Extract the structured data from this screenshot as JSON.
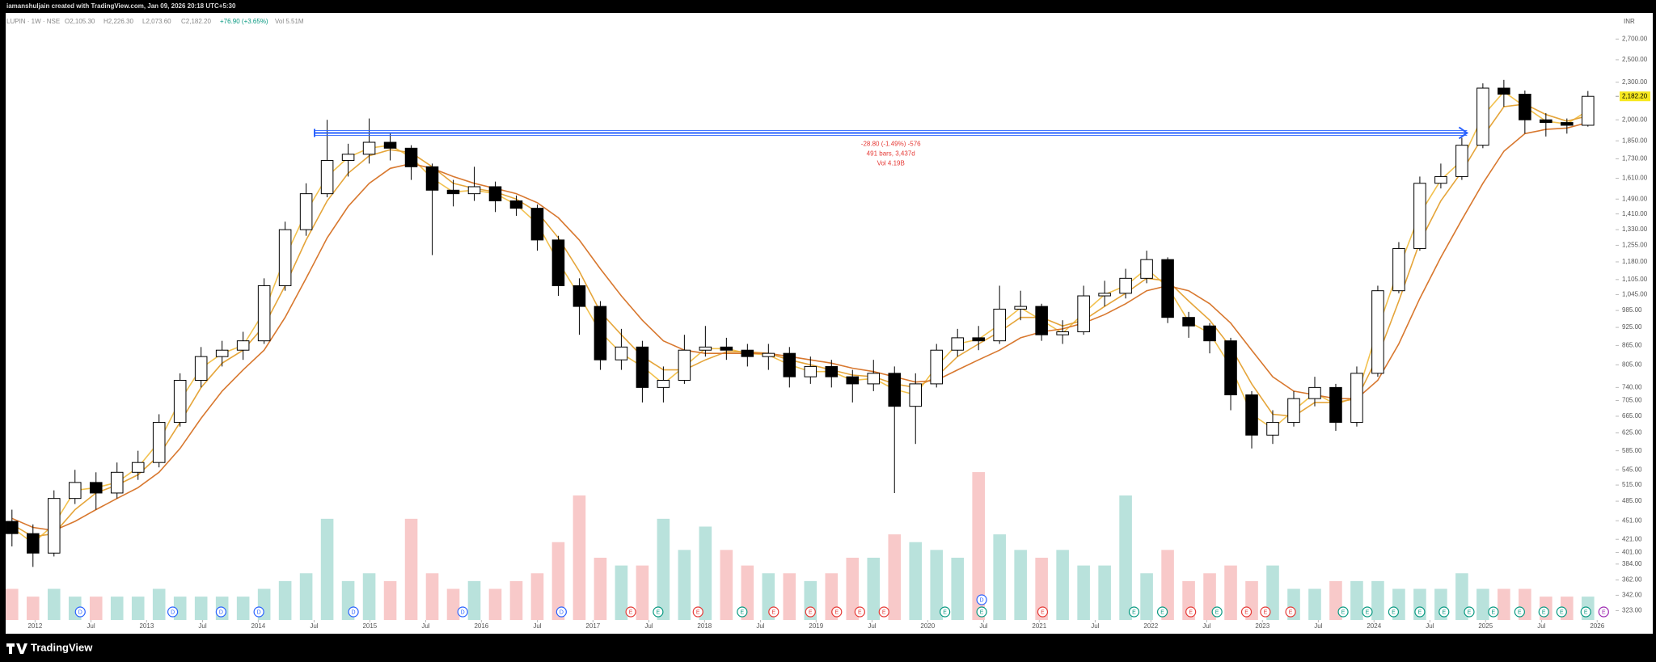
{
  "header": {
    "byline": "iamanshuljain created with TradingView.com, Jan 09, 2026 20:18 UTC+5:30",
    "brand": "TradingView"
  },
  "chart_data": {
    "type": "candlestick",
    "symbol": "LUPIN · 1W · NSE",
    "ohlc": [
      {
        "value": 2105.3,
        "label": "O2,105.30"
      },
      {
        "value": 2226.3,
        "label": "H2,226.30"
      },
      {
        "value": 2073.6,
        "label": "L2,073.60"
      },
      {
        "value": 2182.2,
        "label": "C2,182.20"
      }
    ],
    "change": {
      "value": 76.9,
      "label": "+76.90 (+3.65%)",
      "color": "#089981"
    },
    "volume_text": {
      "value": 5.51,
      "label": "Vol 5.51M"
    },
    "currency": "INR",
    "x": [
      0,
      1,
      2,
      3,
      4,
      5,
      6,
      7,
      8,
      9,
      10,
      11,
      12,
      13,
      14,
      15,
      16,
      17,
      18,
      19,
      20,
      21,
      22,
      23,
      24,
      25,
      26,
      27,
      28,
      29,
      30,
      31,
      32,
      33,
      34,
      35,
      36,
      37,
      38,
      39,
      40,
      41,
      42,
      43,
      44,
      45,
      46,
      47,
      48,
      49,
      50,
      51,
      52,
      53,
      54,
      55,
      56,
      57,
      58,
      59,
      60,
      61,
      62,
      63,
      64,
      65,
      66,
      67,
      68,
      69,
      70,
      71,
      72,
      73,
      74,
      75
    ],
    "open": [
      450,
      430,
      400,
      490,
      520,
      500,
      540,
      560,
      650,
      760,
      830,
      850,
      880,
      1080,
      1330,
      1520,
      1720,
      1760,
      1840,
      1800,
      1680,
      1540,
      1520,
      1560,
      1480,
      1440,
      1280,
      1080,
      1000,
      820,
      860,
      740,
      760,
      850,
      860,
      850,
      830,
      840,
      770,
      800,
      770,
      750,
      780,
      690,
      750,
      850,
      890,
      880,
      990,
      1000,
      900,
      910,
      1040,
      1050,
      1110,
      1190,
      960,
      930,
      880,
      720,
      620,
      650,
      710,
      740,
      650,
      780,
      1060,
      1240,
      1580,
      1620,
      1820,
      2250,
      2200,
      2000,
      1980,
      1960
    ],
    "high": [
      470,
      445,
      505,
      545,
      540,
      560,
      585,
      670,
      780,
      860,
      880,
      910,
      1110,
      1370,
      1580,
      2000,
      1830,
      2010,
      1900,
      1820,
      1700,
      1600,
      1680,
      1590,
      1510,
      1460,
      1300,
      1110,
      1020,
      920,
      880,
      800,
      900,
      930,
      890,
      870,
      870,
      860,
      830,
      820,
      790,
      820,
      800,
      780,
      870,
      920,
      930,
      1080,
      1060,
      1010,
      950,
      1080,
      1100,
      1150,
      1230,
      1200,
      980,
      940,
      890,
      730,
      680,
      730,
      770,
      750,
      800,
      1080,
      1270,
      1620,
      1700,
      1870,
      2290,
      2320,
      2230,
      2050,
      2010,
      2226
    ],
    "low": [
      410,
      380,
      395,
      480,
      470,
      490,
      525,
      550,
      640,
      740,
      800,
      820,
      870,
      1060,
      1300,
      1500,
      1620,
      1700,
      1720,
      1600,
      1210,
      1450,
      1480,
      1420,
      1400,
      1230,
      1040,
      900,
      790,
      790,
      700,
      700,
      750,
      830,
      820,
      800,
      790,
      740,
      750,
      740,
      700,
      730,
      500,
      600,
      740,
      830,
      850,
      870,
      950,
      880,
      870,
      900,
      1000,
      1030,
      1090,
      940,
      890,
      840,
      680,
      590,
      600,
      640,
      690,
      630,
      640,
      770,
      1050,
      1230,
      1550,
      1600,
      1800,
      2100,
      1900,
      1880,
      1900,
      1950
    ],
    "close": [
      430,
      400,
      490,
      520,
      500,
      540,
      560,
      650,
      760,
      830,
      850,
      880,
      1080,
      1330,
      1520,
      1720,
      1760,
      1840,
      1800,
      1680,
      1540,
      1520,
      1560,
      1480,
      1440,
      1280,
      1080,
      1000,
      820,
      860,
      740,
      760,
      850,
      860,
      850,
      830,
      840,
      770,
      800,
      770,
      750,
      780,
      690,
      750,
      850,
      890,
      880,
      990,
      1000,
      900,
      910,
      1040,
      1050,
      1110,
      1190,
      960,
      930,
      880,
      720,
      620,
      650,
      710,
      740,
      650,
      780,
      1060,
      1240,
      1580,
      1620,
      1820,
      2250,
      2200,
      2000,
      1980,
      1960,
      2182.2
    ],
    "up_color": "#ffffff",
    "down_color": "#000000",
    "wick_color": "#000000",
    "lines": [
      {
        "color": "#f2c14e",
        "values": [
          440,
          415,
          445,
          505,
          510,
          520,
          550,
          605,
          705,
          795,
          840,
          865,
          980,
          1200,
          1420,
          1620,
          1740,
          1800,
          1820,
          1740,
          1610,
          1530,
          1540,
          1520,
          1460,
          1360,
          1180,
          1040,
          910,
          840,
          800,
          750,
          800,
          855,
          855,
          840,
          835,
          805,
          785,
          785,
          760,
          765,
          735,
          720,
          800,
          870,
          885,
          935,
          995,
          950,
          905,
          975,
          1045,
          1080,
          1150,
          1075,
          945,
          905,
          800,
          670,
          635,
          680,
          725,
          695,
          715,
          920,
          1150,
          1410,
          1600,
          1720,
          2030,
          2220,
          2100,
          1990,
          1970,
          2070
        ]
      },
      {
        "color": "#e5a53a",
        "values": [
          445,
          425,
          430,
          470,
          500,
          515,
          535,
          575,
          650,
          740,
          810,
          850,
          930,
          1080,
          1280,
          1480,
          1640,
          1750,
          1790,
          1770,
          1680,
          1580,
          1550,
          1530,
          1490,
          1420,
          1290,
          1140,
          980,
          900,
          830,
          790,
          790,
          820,
          845,
          845,
          840,
          820,
          805,
          790,
          775,
          770,
          750,
          740,
          770,
          830,
          870,
          910,
          960,
          960,
          930,
          950,
          1000,
          1050,
          1110,
          1100,
          1020,
          950,
          860,
          750,
          670,
          665,
          700,
          700,
          710,
          830,
          1020,
          1270,
          1480,
          1650,
          1880,
          2100,
          2120,
          2040,
          1990,
          2030
        ]
      },
      {
        "color": "#d8782f",
        "values": [
          455,
          440,
          435,
          450,
          470,
          490,
          510,
          540,
          590,
          660,
          730,
          790,
          850,
          960,
          1110,
          1290,
          1450,
          1580,
          1670,
          1700,
          1670,
          1620,
          1580,
          1550,
          1520,
          1470,
          1390,
          1280,
          1150,
          1040,
          950,
          880,
          850,
          840,
          840,
          840,
          840,
          830,
          820,
          810,
          795,
          785,
          770,
          755,
          760,
          790,
          820,
          850,
          890,
          910,
          920,
          940,
          970,
          1010,
          1060,
          1080,
          1060,
          1010,
          940,
          850,
          770,
          730,
          720,
          710,
          710,
          760,
          870,
          1030,
          1200,
          1380,
          1580,
          1780,
          1900,
          1930,
          1940,
          1980
        ]
      }
    ],
    "volume": {
      "axis": "y2",
      "up_color": "#b9e2dc",
      "down_color": "#f8c9c9",
      "values": [
        4,
        3,
        4,
        3,
        3,
        3,
        3,
        4,
        3,
        3,
        3,
        3,
        4,
        5,
        6,
        13,
        5,
        6,
        5,
        13,
        6,
        4,
        5,
        4,
        5,
        6,
        10,
        16,
        8,
        7,
        7,
        13,
        9,
        12,
        9,
        7,
        6,
        6,
        5,
        6,
        8,
        8,
        11,
        10,
        9,
        8,
        19,
        11,
        9,
        8,
        9,
        7,
        7,
        16,
        6,
        9,
        5,
        6,
        7,
        5,
        7,
        4,
        4,
        5,
        5,
        5,
        4,
        4,
        4,
        6,
        4,
        4,
        4,
        3,
        3,
        3
      ]
    },
    "xlim": [
      -0.3,
      76.2
    ],
    "xticks": [
      {
        "value": 1.1,
        "label": "2012"
      },
      {
        "value": 3.76,
        "label": "Jul"
      },
      {
        "value": 6.41,
        "label": "2013"
      },
      {
        "value": 9.07,
        "label": "Jul"
      },
      {
        "value": 11.72,
        "label": "2014"
      },
      {
        "value": 14.38,
        "label": "Jul"
      },
      {
        "value": 17.03,
        "label": "2015"
      },
      {
        "value": 19.69,
        "label": "Jul"
      },
      {
        "value": 22.34,
        "label": "2016"
      },
      {
        "value": 25.0,
        "label": "Jul"
      },
      {
        "value": 27.65,
        "label": "2017"
      },
      {
        "value": 30.31,
        "label": "Jul"
      },
      {
        "value": 32.96,
        "label": "2018"
      },
      {
        "value": 35.62,
        "label": "Jul"
      },
      {
        "value": 38.27,
        "label": "2019"
      },
      {
        "value": 40.93,
        "label": "Jul"
      },
      {
        "value": 43.58,
        "label": "2020"
      },
      {
        "value": 46.24,
        "label": "Jul"
      },
      {
        "value": 48.89,
        "label": "2021"
      },
      {
        "value": 51.55,
        "label": "Jul"
      },
      {
        "value": 54.2,
        "label": "2022"
      },
      {
        "value": 56.86,
        "label": "Jul"
      },
      {
        "value": 59.51,
        "label": "2023"
      },
      {
        "value": 62.17,
        "label": "Jul"
      },
      {
        "value": 64.82,
        "label": "2024"
      },
      {
        "value": 67.48,
        "label": "Jul"
      },
      {
        "value": 70.13,
        "label": "2025"
      },
      {
        "value": 72.79,
        "label": "Jul"
      },
      {
        "value": 75.44,
        "label": "2026"
      }
    ],
    "ylim": [
      312,
      2975
    ],
    "log_scale": true,
    "yticks": [
      {
        "value": 2700,
        "label": "2,700.00"
      },
      {
        "value": 2500,
        "label": "2,500.00"
      },
      {
        "value": 2300,
        "label": "2,300.00"
      },
      {
        "value": 2000,
        "label": "2,000.00"
      },
      {
        "value": 1850,
        "label": "1,850.00"
      },
      {
        "value": 1730,
        "label": "1,730.00"
      },
      {
        "value": 1610,
        "label": "1,610.00"
      },
      {
        "value": 1490,
        "label": "1,490.00"
      },
      {
        "value": 1410,
        "label": "1,410.00"
      },
      {
        "value": 1330,
        "label": "1,330.00"
      },
      {
        "value": 1255,
        "label": "1,255.00"
      },
      {
        "value": 1180,
        "label": "1,180.00"
      },
      {
        "value": 1105,
        "label": "1,105.00"
      },
      {
        "value": 1045,
        "label": "1,045.00"
      },
      {
        "value": 985,
        "label": "985.00"
      },
      {
        "value": 925,
        "label": "925.00"
      },
      {
        "value": 865,
        "label": "865.00"
      },
      {
        "value": 805,
        "label": "805.00"
      },
      {
        "value": 740,
        "label": "740.00"
      },
      {
        "value": 705,
        "label": "705.00"
      },
      {
        "value": 665,
        "label": "665.00"
      },
      {
        "value": 625,
        "label": "625.00"
      },
      {
        "value": 585,
        "label": "585.00"
      },
      {
        "value": 545,
        "label": "545.00"
      },
      {
        "value": 515,
        "label": "515.00"
      },
      {
        "value": 485,
        "label": "485.00"
      },
      {
        "value": 451,
        "label": "451.00"
      },
      {
        "value": 421,
        "label": "421.00"
      },
      {
        "value": 401,
        "label": "401.00"
      },
      {
        "value": 384,
        "label": "384.00"
      },
      {
        "value": 362,
        "label": "362.00"
      },
      {
        "value": 342,
        "label": "342.00"
      },
      {
        "value": 323,
        "label": "323.00"
      }
    ],
    "y2lim": [
      0,
      78
    ],
    "last_price": {
      "value": 2182.2,
      "label": "2,182.20",
      "color": "#f7e81f"
    },
    "measure": {
      "x": [
        14.4,
        69.25
      ],
      "y": 1905,
      "color": "#2962ff",
      "labels": [
        {
          "value": -28.8,
          "label": "-28.80 (-1.49%) -576"
        },
        {
          "value": 491,
          "label": "491 bars, 3,437d"
        },
        {
          "value": 4190,
          "label": "Vol 4.19B"
        }
      ],
      "label_color": "#e53935"
    },
    "events": [
      {
        "x": 3.25,
        "label": "D",
        "color": "#2962ff"
      },
      {
        "x": 7.65,
        "label": "D",
        "color": "#2962ff"
      },
      {
        "x": 9.95,
        "label": "D",
        "color": "#2962ff"
      },
      {
        "x": 11.75,
        "label": "D",
        "color": "#2962ff"
      },
      {
        "x": 16.25,
        "label": "D",
        "color": "#2962ff"
      },
      {
        "x": 21.45,
        "label": "D",
        "color": "#2962ff"
      },
      {
        "x": 26.15,
        "label": "D",
        "color": "#2962ff"
      },
      {
        "x": 29.45,
        "label": "E",
        "color": "#e53935"
      },
      {
        "x": 30.75,
        "label": "E",
        "color": "#089981"
      },
      {
        "x": 32.65,
        "label": "E",
        "color": "#e53935"
      },
      {
        "x": 34.75,
        "label": "E",
        "color": "#089981"
      },
      {
        "x": 36.25,
        "label": "E",
        "color": "#e53935"
      },
      {
        "x": 38.0,
        "label": "E",
        "color": "#e53935"
      },
      {
        "x": 39.25,
        "label": "E",
        "color": "#e53935"
      },
      {
        "x": 40.35,
        "label": "E",
        "color": "#e53935"
      },
      {
        "x": 41.5,
        "label": "E",
        "color": "#e53935"
      },
      {
        "x": 44.4,
        "label": "E",
        "color": "#089981"
      },
      {
        "x": 46.15,
        "label": "E",
        "color": "#089981"
      },
      {
        "x": 46.15,
        "label": "D",
        "color": "#2962ff"
      },
      {
        "x": 49.05,
        "label": "E",
        "color": "#e53935"
      },
      {
        "x": 53.4,
        "label": "E",
        "color": "#089981"
      },
      {
        "x": 54.75,
        "label": "E",
        "color": "#089981"
      },
      {
        "x": 56.1,
        "label": "E",
        "color": "#e53935"
      },
      {
        "x": 57.35,
        "label": "E",
        "color": "#089981"
      },
      {
        "x": 58.75,
        "label": "E",
        "color": "#e53935"
      },
      {
        "x": 59.65,
        "label": "E",
        "color": "#e53935"
      },
      {
        "x": 60.85,
        "label": "E",
        "color": "#e53935"
      },
      {
        "x": 63.35,
        "label": "E",
        "color": "#089981"
      },
      {
        "x": 64.5,
        "label": "E",
        "color": "#089981"
      },
      {
        "x": 65.75,
        "label": "E",
        "color": "#089981"
      },
      {
        "x": 67.0,
        "label": "E",
        "color": "#089981"
      },
      {
        "x": 68.15,
        "label": "E",
        "color": "#089981"
      },
      {
        "x": 69.35,
        "label": "E",
        "color": "#089981"
      },
      {
        "x": 70.5,
        "label": "E",
        "color": "#089981"
      },
      {
        "x": 71.75,
        "label": "E",
        "color": "#089981"
      },
      {
        "x": 72.9,
        "label": "E",
        "color": "#089981"
      },
      {
        "x": 73.75,
        "label": "E",
        "color": "#089981"
      },
      {
        "x": 74.9,
        "label": "E",
        "color": "#089981"
      },
      {
        "x": 75.75,
        "label": "E",
        "color": "#9c27b0"
      }
    ]
  }
}
